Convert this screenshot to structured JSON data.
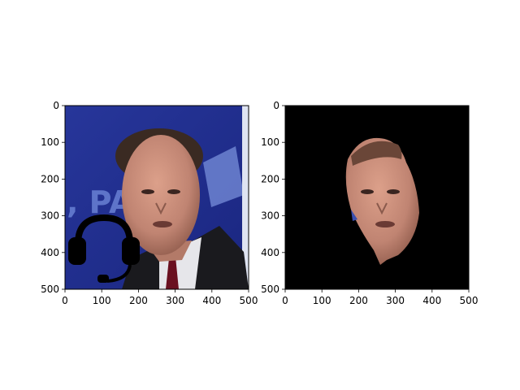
{
  "figure": {
    "background": "#ffffff"
  },
  "chart_data": [
    {
      "type": "image",
      "content": "photo of a man in a suit with a black headset icon overlaid",
      "xlim": [
        0,
        500
      ],
      "ylim": [
        500,
        0
      ],
      "xticks": [
        0,
        100,
        200,
        300,
        400,
        500
      ],
      "yticks": [
        0,
        100,
        200,
        300,
        400,
        500
      ],
      "x_tick_labels": [
        "0",
        "100",
        "200",
        "300",
        "400",
        "500"
      ],
      "y_tick_labels": [
        "0",
        "100",
        "200",
        "300",
        "400",
        "500"
      ],
      "colors": {
        "background": "#1f2f8f",
        "headset_icon": "#000000",
        "suit": "#1a1a1e"
      }
    },
    {
      "type": "image",
      "content": "segmented face mask result on black background",
      "xlim": [
        0,
        500
      ],
      "ylim": [
        500,
        0
      ],
      "xticks": [
        0,
        100,
        200,
        300,
        400,
        500
      ],
      "yticks": [
        0,
        100,
        200,
        300,
        400,
        500
      ],
      "x_tick_labels": [
        "0",
        "100",
        "200",
        "300",
        "400",
        "500"
      ],
      "y_tick_labels": [
        "0",
        "100",
        "200",
        "300",
        "400",
        "500"
      ],
      "colors": {
        "background": "#000000",
        "skin": "#c48a78"
      }
    }
  ]
}
